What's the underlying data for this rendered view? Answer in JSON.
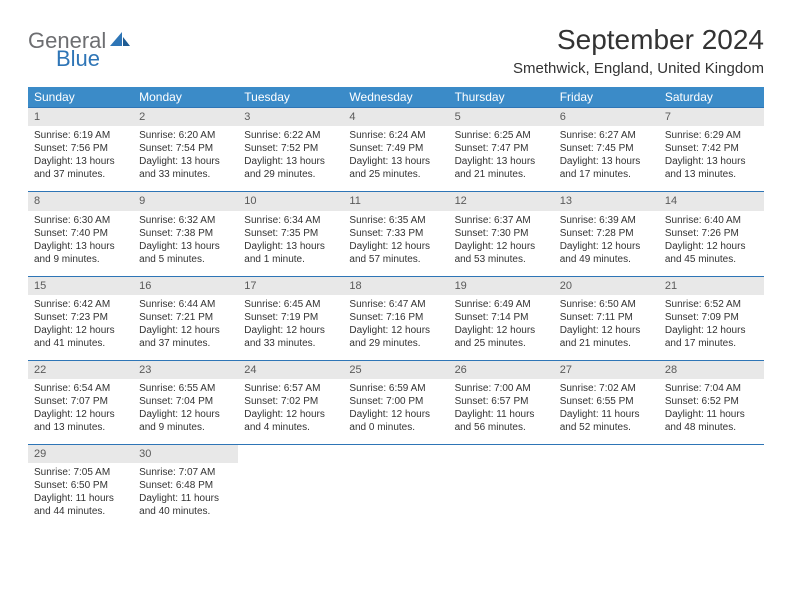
{
  "logo": {
    "text1": "General",
    "text2": "Blue",
    "color_gray": "#6d6e71",
    "color_blue": "#2e75b6"
  },
  "title": "September 2024",
  "location": "Smethwick, England, United Kingdom",
  "colors": {
    "header_bg": "#3b8bc8",
    "header_text": "#ffffff",
    "daynum_bg": "#e8e8e8",
    "row_border": "#2e75b6",
    "body_text": "#333333"
  },
  "fonts": {
    "title_size": 28,
    "location_size": 15,
    "th_size": 12,
    "cell_size": 10
  },
  "weekdays": [
    "Sunday",
    "Monday",
    "Tuesday",
    "Wednesday",
    "Thursday",
    "Friday",
    "Saturday"
  ],
  "weeks": [
    [
      {
        "n": "1",
        "sunrise": "Sunrise: 6:19 AM",
        "sunset": "Sunset: 7:56 PM",
        "day1": "Daylight: 13 hours",
        "day2": "and 37 minutes."
      },
      {
        "n": "2",
        "sunrise": "Sunrise: 6:20 AM",
        "sunset": "Sunset: 7:54 PM",
        "day1": "Daylight: 13 hours",
        "day2": "and 33 minutes."
      },
      {
        "n": "3",
        "sunrise": "Sunrise: 6:22 AM",
        "sunset": "Sunset: 7:52 PM",
        "day1": "Daylight: 13 hours",
        "day2": "and 29 minutes."
      },
      {
        "n": "4",
        "sunrise": "Sunrise: 6:24 AM",
        "sunset": "Sunset: 7:49 PM",
        "day1": "Daylight: 13 hours",
        "day2": "and 25 minutes."
      },
      {
        "n": "5",
        "sunrise": "Sunrise: 6:25 AM",
        "sunset": "Sunset: 7:47 PM",
        "day1": "Daylight: 13 hours",
        "day2": "and 21 minutes."
      },
      {
        "n": "6",
        "sunrise": "Sunrise: 6:27 AM",
        "sunset": "Sunset: 7:45 PM",
        "day1": "Daylight: 13 hours",
        "day2": "and 17 minutes."
      },
      {
        "n": "7",
        "sunrise": "Sunrise: 6:29 AM",
        "sunset": "Sunset: 7:42 PM",
        "day1": "Daylight: 13 hours",
        "day2": "and 13 minutes."
      }
    ],
    [
      {
        "n": "8",
        "sunrise": "Sunrise: 6:30 AM",
        "sunset": "Sunset: 7:40 PM",
        "day1": "Daylight: 13 hours",
        "day2": "and 9 minutes."
      },
      {
        "n": "9",
        "sunrise": "Sunrise: 6:32 AM",
        "sunset": "Sunset: 7:38 PM",
        "day1": "Daylight: 13 hours",
        "day2": "and 5 minutes."
      },
      {
        "n": "10",
        "sunrise": "Sunrise: 6:34 AM",
        "sunset": "Sunset: 7:35 PM",
        "day1": "Daylight: 13 hours",
        "day2": "and 1 minute."
      },
      {
        "n": "11",
        "sunrise": "Sunrise: 6:35 AM",
        "sunset": "Sunset: 7:33 PM",
        "day1": "Daylight: 12 hours",
        "day2": "and 57 minutes."
      },
      {
        "n": "12",
        "sunrise": "Sunrise: 6:37 AM",
        "sunset": "Sunset: 7:30 PM",
        "day1": "Daylight: 12 hours",
        "day2": "and 53 minutes."
      },
      {
        "n": "13",
        "sunrise": "Sunrise: 6:39 AM",
        "sunset": "Sunset: 7:28 PM",
        "day1": "Daylight: 12 hours",
        "day2": "and 49 minutes."
      },
      {
        "n": "14",
        "sunrise": "Sunrise: 6:40 AM",
        "sunset": "Sunset: 7:26 PM",
        "day1": "Daylight: 12 hours",
        "day2": "and 45 minutes."
      }
    ],
    [
      {
        "n": "15",
        "sunrise": "Sunrise: 6:42 AM",
        "sunset": "Sunset: 7:23 PM",
        "day1": "Daylight: 12 hours",
        "day2": "and 41 minutes."
      },
      {
        "n": "16",
        "sunrise": "Sunrise: 6:44 AM",
        "sunset": "Sunset: 7:21 PM",
        "day1": "Daylight: 12 hours",
        "day2": "and 37 minutes."
      },
      {
        "n": "17",
        "sunrise": "Sunrise: 6:45 AM",
        "sunset": "Sunset: 7:19 PM",
        "day1": "Daylight: 12 hours",
        "day2": "and 33 minutes."
      },
      {
        "n": "18",
        "sunrise": "Sunrise: 6:47 AM",
        "sunset": "Sunset: 7:16 PM",
        "day1": "Daylight: 12 hours",
        "day2": "and 29 minutes."
      },
      {
        "n": "19",
        "sunrise": "Sunrise: 6:49 AM",
        "sunset": "Sunset: 7:14 PM",
        "day1": "Daylight: 12 hours",
        "day2": "and 25 minutes."
      },
      {
        "n": "20",
        "sunrise": "Sunrise: 6:50 AM",
        "sunset": "Sunset: 7:11 PM",
        "day1": "Daylight: 12 hours",
        "day2": "and 21 minutes."
      },
      {
        "n": "21",
        "sunrise": "Sunrise: 6:52 AM",
        "sunset": "Sunset: 7:09 PM",
        "day1": "Daylight: 12 hours",
        "day2": "and 17 minutes."
      }
    ],
    [
      {
        "n": "22",
        "sunrise": "Sunrise: 6:54 AM",
        "sunset": "Sunset: 7:07 PM",
        "day1": "Daylight: 12 hours",
        "day2": "and 13 minutes."
      },
      {
        "n": "23",
        "sunrise": "Sunrise: 6:55 AM",
        "sunset": "Sunset: 7:04 PM",
        "day1": "Daylight: 12 hours",
        "day2": "and 9 minutes."
      },
      {
        "n": "24",
        "sunrise": "Sunrise: 6:57 AM",
        "sunset": "Sunset: 7:02 PM",
        "day1": "Daylight: 12 hours",
        "day2": "and 4 minutes."
      },
      {
        "n": "25",
        "sunrise": "Sunrise: 6:59 AM",
        "sunset": "Sunset: 7:00 PM",
        "day1": "Daylight: 12 hours",
        "day2": "and 0 minutes."
      },
      {
        "n": "26",
        "sunrise": "Sunrise: 7:00 AM",
        "sunset": "Sunset: 6:57 PM",
        "day1": "Daylight: 11 hours",
        "day2": "and 56 minutes."
      },
      {
        "n": "27",
        "sunrise": "Sunrise: 7:02 AM",
        "sunset": "Sunset: 6:55 PM",
        "day1": "Daylight: 11 hours",
        "day2": "and 52 minutes."
      },
      {
        "n": "28",
        "sunrise": "Sunrise: 7:04 AM",
        "sunset": "Sunset: 6:52 PM",
        "day1": "Daylight: 11 hours",
        "day2": "and 48 minutes."
      }
    ],
    [
      {
        "n": "29",
        "sunrise": "Sunrise: 7:05 AM",
        "sunset": "Sunset: 6:50 PM",
        "day1": "Daylight: 11 hours",
        "day2": "and 44 minutes."
      },
      {
        "n": "30",
        "sunrise": "Sunrise: 7:07 AM",
        "sunset": "Sunset: 6:48 PM",
        "day1": "Daylight: 11 hours",
        "day2": "and 40 minutes."
      },
      null,
      null,
      null,
      null,
      null
    ]
  ]
}
